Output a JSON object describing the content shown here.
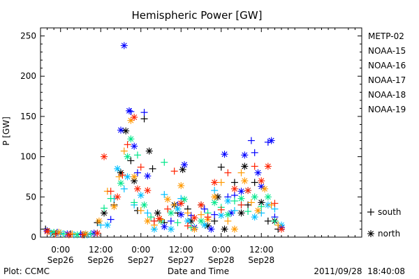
{
  "chart_data": {
    "type": "scatter",
    "title": "Hemispheric Power [GW]",
    "xlabel": "Date and Time",
    "ylabel": "P [GW]",
    "ylim": [
      0,
      260
    ],
    "yticks": [
      0,
      50,
      100,
      150,
      200,
      250
    ],
    "xlim": [
      -6,
      90
    ],
    "x_units": "hours since 2011-09-26 00:00",
    "xticks": [
      {
        "x": 0,
        "time": "0:00",
        "date": "Sep26"
      },
      {
        "x": 12,
        "time": "12:00",
        "date": "Sep26"
      },
      {
        "x": 24,
        "time": "0:00",
        "date": "Sep27"
      },
      {
        "x": 36,
        "time": "12:00",
        "date": "Sep27"
      },
      {
        "x": 48,
        "time": "0:00",
        "date": "Sep28"
      },
      {
        "x": 60,
        "time": "12:00",
        "date": "Sep28"
      }
    ],
    "legend_position": "right",
    "series": [
      {
        "name": "METP-02",
        "color": "#000000",
        "points": [
          [
            -4.5,
            10,
            "s"
          ],
          [
            -2,
            5,
            "n"
          ],
          [
            3,
            4,
            "s"
          ],
          [
            7,
            3,
            "n"
          ],
          [
            11,
            18,
            "s"
          ],
          [
            13,
            30,
            "n"
          ],
          [
            16,
            40,
            "s"
          ],
          [
            18,
            80,
            "n"
          ],
          [
            19.5,
            132,
            "n"
          ],
          [
            21,
            95,
            "s"
          ],
          [
            22,
            70,
            "n"
          ],
          [
            23,
            33,
            "s"
          ],
          [
            25,
            147,
            "s"
          ],
          [
            26.5,
            107,
            "n"
          ],
          [
            27.5,
            85,
            "s"
          ],
          [
            29,
            30,
            "n"
          ],
          [
            31,
            18,
            "s"
          ],
          [
            34,
            40,
            "n"
          ],
          [
            35,
            30,
            "s"
          ],
          [
            36.5,
            84,
            "n"
          ],
          [
            38,
            35,
            "s"
          ],
          [
            39,
            20,
            "n"
          ],
          [
            42,
            40,
            "s"
          ],
          [
            44,
            14,
            "n"
          ],
          [
            46,
            20,
            "s"
          ],
          [
            47,
            50,
            "n"
          ],
          [
            48,
            87,
            "s"
          ],
          [
            49,
            10,
            "n"
          ],
          [
            52,
            68,
            "s"
          ],
          [
            54,
            30,
            "n"
          ],
          [
            55,
            88,
            "n"
          ],
          [
            56,
            40,
            "s"
          ],
          [
            58,
            68,
            "s"
          ],
          [
            60,
            43,
            "n"
          ],
          [
            62,
            20,
            "s"
          ],
          [
            64,
            20,
            "n"
          ],
          [
            65,
            10,
            "s"
          ]
        ]
      },
      {
        "name": "NOAA-15",
        "color": "#0000ff",
        "points": [
          [
            -4,
            8,
            "n"
          ],
          [
            -1,
            6,
            "s"
          ],
          [
            2,
            4,
            "n"
          ],
          [
            6,
            4,
            "s"
          ],
          [
            10,
            5,
            "n"
          ],
          [
            15,
            22,
            "s"
          ],
          [
            18,
            133,
            "n"
          ],
          [
            19,
            238,
            "n"
          ],
          [
            20.5,
            157,
            "n"
          ],
          [
            21,
            156,
            "s"
          ],
          [
            22,
            113,
            "n"
          ],
          [
            23,
            80,
            "s"
          ],
          [
            25,
            155,
            "s"
          ],
          [
            26,
            76,
            "n"
          ],
          [
            28,
            20,
            "s"
          ],
          [
            31,
            13,
            "n"
          ],
          [
            33,
            20,
            "s"
          ],
          [
            35,
            40,
            "s"
          ],
          [
            36,
            28,
            "n"
          ],
          [
            37,
            90,
            "n"
          ],
          [
            39,
            27,
            "s"
          ],
          [
            40,
            12,
            "n"
          ],
          [
            43,
            35,
            "s"
          ],
          [
            45,
            10,
            "n"
          ],
          [
            46,
            28,
            "s"
          ],
          [
            49,
            103,
            "n"
          ],
          [
            50,
            50,
            "s"
          ],
          [
            51,
            30,
            "n"
          ],
          [
            52,
            52,
            "s"
          ],
          [
            54,
            57,
            "n"
          ],
          [
            55,
            102,
            "n"
          ],
          [
            57,
            120,
            "s"
          ],
          [
            58,
            105,
            "s"
          ],
          [
            59,
            80,
            "n"
          ],
          [
            60,
            63,
            "n"
          ],
          [
            62,
            118,
            "s"
          ],
          [
            63,
            120,
            "n"
          ],
          [
            64,
            25,
            "s"
          ],
          [
            66,
            12,
            "n"
          ]
        ]
      },
      {
        "name": "NOAA-16",
        "color": "#00bfff",
        "points": [
          [
            -3,
            5,
            "s"
          ],
          [
            0,
            5,
            "n"
          ],
          [
            4,
            3,
            "s"
          ],
          [
            8,
            3,
            "n"
          ],
          [
            12,
            15,
            "s"
          ],
          [
            14,
            15,
            "n"
          ],
          [
            16,
            48,
            "s"
          ],
          [
            17,
            85,
            "n"
          ],
          [
            19,
            60,
            "s"
          ],
          [
            20,
            75,
            "n"
          ],
          [
            22,
            40,
            "s"
          ],
          [
            24,
            52,
            "n"
          ],
          [
            26,
            30,
            "s"
          ],
          [
            28,
            10,
            "n"
          ],
          [
            30,
            20,
            "s"
          ],
          [
            31,
            53,
            "s"
          ],
          [
            33,
            10,
            "n"
          ],
          [
            35,
            35,
            "n"
          ],
          [
            36,
            48,
            "s"
          ],
          [
            38,
            20,
            "n"
          ],
          [
            40,
            12,
            "s"
          ],
          [
            43,
            15,
            "n"
          ],
          [
            46,
            58,
            "s"
          ],
          [
            48,
            27,
            "n"
          ],
          [
            50,
            45,
            "n"
          ],
          [
            52,
            33,
            "s"
          ],
          [
            54,
            40,
            "s"
          ],
          [
            56,
            58,
            "n"
          ],
          [
            58,
            25,
            "n"
          ],
          [
            60,
            30,
            "s"
          ],
          [
            62,
            40,
            "n"
          ],
          [
            64,
            35,
            "s"
          ],
          [
            66,
            15,
            "n"
          ]
        ]
      },
      {
        "name": "NOAA-17",
        "color": "#00e68a",
        "points": [
          [
            -2,
            6,
            "n"
          ],
          [
            1,
            4,
            "s"
          ],
          [
            5,
            3,
            "n"
          ],
          [
            9,
            4,
            "s"
          ],
          [
            13,
            36,
            "s"
          ],
          [
            15,
            48,
            "s"
          ],
          [
            18,
            67,
            "n"
          ],
          [
            20,
            100,
            "n"
          ],
          [
            21,
            122,
            "n"
          ],
          [
            22,
            43,
            "s"
          ],
          [
            23,
            102,
            "s"
          ],
          [
            25,
            40,
            "n"
          ],
          [
            27,
            25,
            "s"
          ],
          [
            30,
            20,
            "n"
          ],
          [
            31,
            93,
            "s"
          ],
          [
            33,
            30,
            "n"
          ],
          [
            35,
            18,
            "s"
          ],
          [
            37,
            47,
            "n"
          ],
          [
            39,
            12,
            "s"
          ],
          [
            42,
            20,
            "n"
          ],
          [
            44,
            30,
            "s"
          ],
          [
            46,
            43,
            "n"
          ],
          [
            48,
            37,
            "s"
          ],
          [
            50,
            28,
            "n"
          ],
          [
            52,
            45,
            "s"
          ],
          [
            54,
            48,
            "n"
          ],
          [
            56,
            32,
            "s"
          ],
          [
            58,
            50,
            "n"
          ],
          [
            60,
            38,
            "s"
          ],
          [
            62,
            50,
            "n"
          ],
          [
            64,
            20,
            "s"
          ]
        ]
      },
      {
        "name": "NOAA-18",
        "color": "#ff9900",
        "points": [
          [
            -3.5,
            7,
            "s"
          ],
          [
            -0.5,
            6,
            "n"
          ],
          [
            3.5,
            4,
            "s"
          ],
          [
            7.5,
            4,
            "n"
          ],
          [
            11.5,
            20,
            "n"
          ],
          [
            14,
            57,
            "s"
          ],
          [
            16,
            38,
            "n"
          ],
          [
            17.5,
            75,
            "s"
          ],
          [
            19,
            107,
            "s"
          ],
          [
            21,
            145,
            "n"
          ],
          [
            22,
            75,
            "n"
          ],
          [
            24,
            33,
            "s"
          ],
          [
            26,
            20,
            "n"
          ],
          [
            28,
            15,
            "s"
          ],
          [
            30,
            22,
            "s"
          ],
          [
            32,
            47,
            "n"
          ],
          [
            34,
            40,
            "s"
          ],
          [
            36,
            64,
            "n"
          ],
          [
            38,
            30,
            "s"
          ],
          [
            40,
            10,
            "n"
          ],
          [
            42,
            28,
            "s"
          ],
          [
            44,
            22,
            "n"
          ],
          [
            46,
            50,
            "n"
          ],
          [
            48,
            68,
            "s"
          ],
          [
            50,
            20,
            "s"
          ],
          [
            52,
            10,
            "n"
          ],
          [
            54,
            80,
            "s"
          ],
          [
            55,
            70,
            "n"
          ],
          [
            57,
            43,
            "s"
          ],
          [
            59,
            33,
            "n"
          ],
          [
            61,
            60,
            "n"
          ],
          [
            63,
            40,
            "s"
          ],
          [
            65,
            15,
            "s"
          ]
        ]
      },
      {
        "name": "NOAA-19",
        "color": "#ff2200",
        "points": [
          [
            -4,
            7,
            "n"
          ],
          [
            -1.5,
            4,
            "s"
          ],
          [
            2.5,
            3,
            "n"
          ],
          [
            6.5,
            3,
            "s"
          ],
          [
            11,
            5,
            "n"
          ],
          [
            13,
            100,
            "n"
          ],
          [
            15,
            57,
            "s"
          ],
          [
            17,
            50,
            "n"
          ],
          [
            18.5,
            77,
            "s"
          ],
          [
            20,
            115,
            "s"
          ],
          [
            22,
            149,
            "n"
          ],
          [
            23,
            60,
            "n"
          ],
          [
            24,
            87,
            "s"
          ],
          [
            26,
            58,
            "n"
          ],
          [
            28,
            20,
            "s"
          ],
          [
            29.5,
            23,
            "n"
          ],
          [
            32,
            35,
            "s"
          ],
          [
            34,
            82,
            "s"
          ],
          [
            36,
            42,
            "n"
          ],
          [
            38,
            14,
            "s"
          ],
          [
            40,
            24,
            "n"
          ],
          [
            42,
            40,
            "n"
          ],
          [
            44,
            25,
            "s"
          ],
          [
            46,
            68,
            "n"
          ],
          [
            48,
            34,
            "s"
          ],
          [
            50,
            80,
            "s"
          ],
          [
            52,
            60,
            "n"
          ],
          [
            54,
            40,
            "s"
          ],
          [
            56,
            58,
            "n"
          ],
          [
            58,
            88,
            "s"
          ],
          [
            60,
            70,
            "n"
          ],
          [
            62,
            88,
            "n"
          ],
          [
            64,
            42,
            "s"
          ],
          [
            66,
            10,
            "n"
          ]
        ]
      }
    ],
    "marker_legend": [
      {
        "symbol": "+",
        "label": "south"
      },
      {
        "symbol": "*",
        "label": "north"
      }
    ]
  },
  "footer": {
    "plot_credit": "Plot: CCMC",
    "timestamp": "2011/09/28  18:40:08"
  }
}
